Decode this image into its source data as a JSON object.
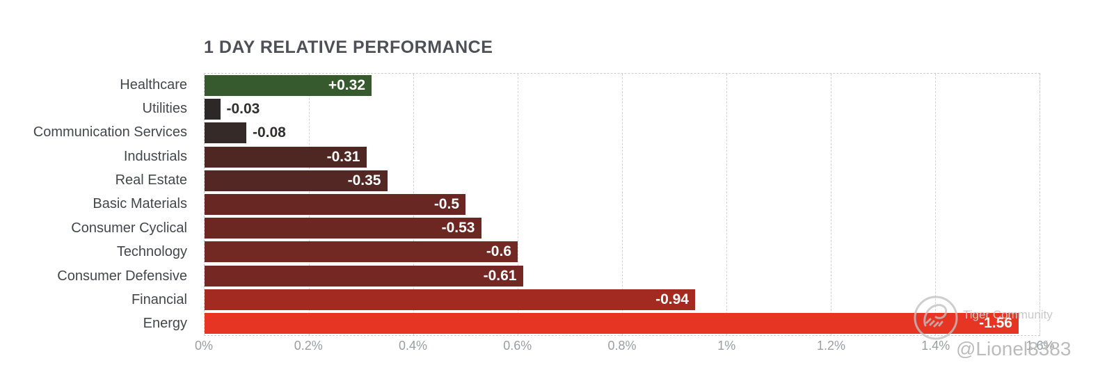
{
  "chart": {
    "title": "1 DAY RELATIVE PERFORMANCE",
    "title_color": "#4d5157",
    "background": "#ffffff"
  },
  "chart_data": {
    "type": "bar",
    "orientation": "horizontal",
    "title": "1 DAY RELATIVE PERFORMANCE",
    "categories": [
      "Healthcare",
      "Utilities",
      "Communication Services",
      "Industrials",
      "Real Estate",
      "Basic Materials",
      "Consumer Cyclical",
      "Technology",
      "Consumer Defensive",
      "Financial",
      "Energy"
    ],
    "values": [
      0.32,
      -0.03,
      -0.08,
      -0.31,
      -0.35,
      -0.5,
      -0.53,
      -0.6,
      -0.61,
      -0.94,
      -1.56
    ],
    "value_labels": [
      "+0.32",
      "-0.03",
      "-0.08",
      "-0.31",
      "-0.35",
      "-0.5",
      "-0.53",
      "-0.6",
      "-0.61",
      "-0.94",
      "-1.56"
    ],
    "bar_colors": [
      "#36592e",
      "#2c2827",
      "#352a27",
      "#4e2722",
      "#532723",
      "#682722",
      "#6c2722",
      "#722823",
      "#752823",
      "#a32a20",
      "#e63522"
    ],
    "xlabel": "",
    "ylabel": "",
    "axis": {
      "min": 0,
      "max": 1.6,
      "unit": "%",
      "tick_labels": [
        "0%",
        "0.2%",
        "0.4%",
        "0.6%",
        "0.8%",
        "1%",
        "1.2%",
        "1.4%",
        "1.6%"
      ],
      "tick_step": 0.2
    },
    "bar_length_basis": "absolute value of performance, plotted on 0%–1.6% axis",
    "grid": "vertical dashed gridlines at each tick, dashed plot border",
    "legend": "none",
    "positive_color": "#36592e",
    "negative_gradient": [
      "#2c2827",
      "#e63522"
    ]
  },
  "watermark": {
    "community_label": "Tiger Community",
    "handle": "@Lionel8383",
    "logo": "tiger-community-logo"
  }
}
